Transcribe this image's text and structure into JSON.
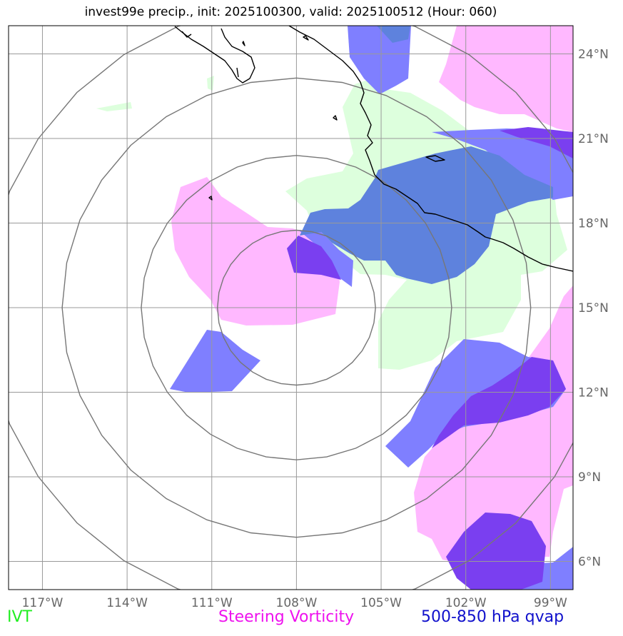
{
  "title": "invest99e precip., init: 2025100300, valid: 2025100512 (Hour: 060)",
  "map": {
    "lon_range": [
      -118.2,
      -98.2
    ],
    "lat_range": [
      5.0,
      25.0
    ],
    "lon_ticks": [
      {
        "value": -117,
        "label": "117°W"
      },
      {
        "value": -114,
        "label": "114°W"
      },
      {
        "value": -111,
        "label": "111°W"
      },
      {
        "value": -108,
        "label": "108°W"
      },
      {
        "value": -105,
        "label": "105°W"
      },
      {
        "value": -102,
        "label": "102°W"
      },
      {
        "value": -99,
        "label": "99°W"
      }
    ],
    "lat_ticks": [
      {
        "value": 6,
        "label": "6°N"
      },
      {
        "value": 9,
        "label": "9°N"
      },
      {
        "value": 12,
        "label": "12°N"
      },
      {
        "value": 15,
        "label": "15°N"
      },
      {
        "value": 18,
        "label": "18°N"
      },
      {
        "value": 21,
        "label": "21°N"
      },
      {
        "value": 24,
        "label": "24°N"
      }
    ],
    "grid_lines": true,
    "range_rings": {
      "center": [
        -108,
        15
      ],
      "radii_deg": [
        2.8,
        5.5,
        8.3,
        11.0
      ]
    },
    "colors": {
      "ivt": "#ddffdd",
      "vorticity": "#ffb8ff",
      "qvap_light": "#7f7fff",
      "qvap_mid": "#5e82dd",
      "qvap_dark": "#7a3ff0",
      "grid": "#999999",
      "ring": "#777777",
      "coast": "#000000"
    }
  },
  "legend": {
    "ivt": {
      "label": "IVT",
      "color": "#22ee22"
    },
    "vorticity": {
      "label": "Steering Vorticity",
      "color": "#ee11ee"
    },
    "qvap": {
      "label": "500-850 hPa qvap",
      "color": "#1111cc"
    }
  }
}
